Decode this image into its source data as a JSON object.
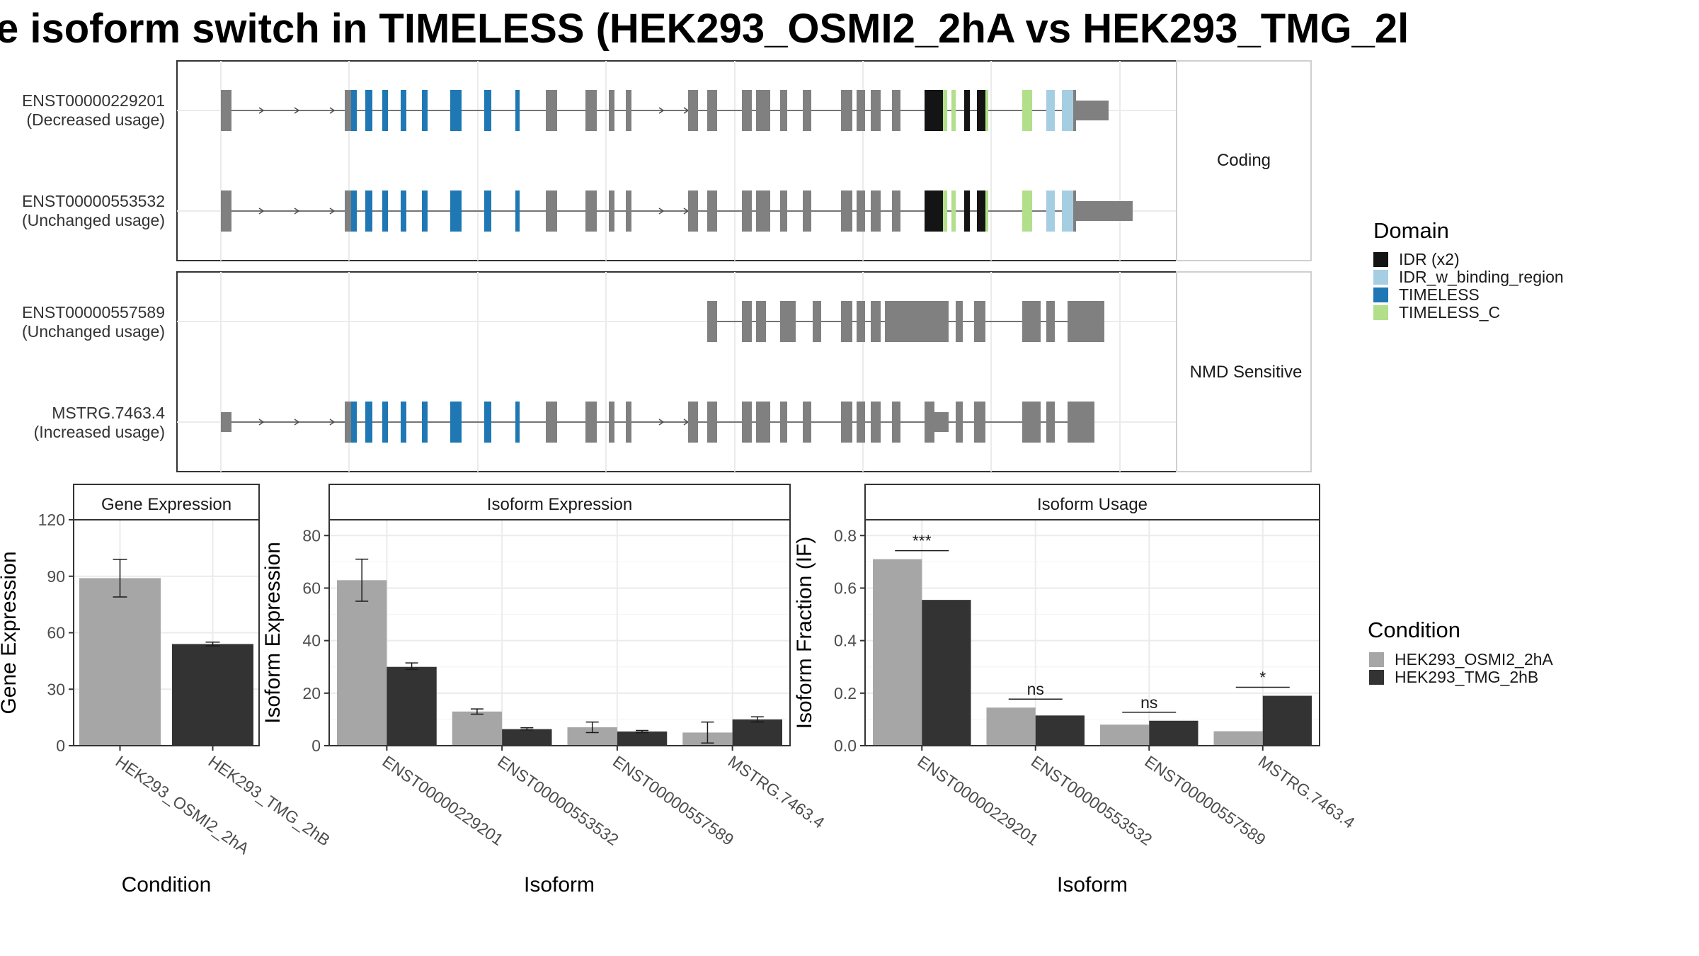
{
  "title": "e isoform switch in TIMELESS (HEK293_OSMI2_2hA vs HEK293_TMG_2l",
  "colors": {
    "IDR (x2)": "#141414",
    "IDR_w_binding_region": "#a6cee3",
    "TIMELESS": "#1f78b4",
    "TIMELESS_C": "#b2df8a",
    "exon": "#808080",
    "HEK293_OSMI2_2hA": "#a6a6a6",
    "HEK293_TMG_2hB": "#333333"
  },
  "transcript_panels": [
    {
      "label": "Coding",
      "isoforms": [
        {
          "id": "ENST00000229201",
          "usage": "(Decreased usage)"
        },
        {
          "id": "ENST00000553532",
          "usage": "(Unchanged usage)"
        }
      ]
    },
    {
      "label": "NMD Sensitive",
      "isoforms": [
        {
          "id": "ENST00000557589",
          "usage": "(Unchanged usage)"
        },
        {
          "id": "MSTRG.7463.4",
          "usage": "(Increased usage)"
        }
      ]
    }
  ],
  "legend_domain": {
    "title": "Domain",
    "items": [
      "IDR (x2)",
      "IDR_w_binding_region",
      "TIMELESS",
      "TIMELESS_C"
    ]
  },
  "legend_condition": {
    "title": "Condition",
    "items": [
      "HEK293_OSMI2_2hA",
      "HEK293_TMG_2hB"
    ]
  },
  "chart_data": [
    {
      "type": "bar",
      "title": "Gene Expression",
      "xlabel": "Condition",
      "ylabel": "Gene Expression",
      "ylim": [
        0,
        120
      ],
      "yticks": [
        0,
        30,
        60,
        90,
        120
      ],
      "categories": [
        "HEK293_OSMI2_2hA",
        "HEK293_TMG_2hB"
      ],
      "values": [
        89,
        54
      ],
      "error_bars": [
        [
          79,
          99
        ],
        [
          53,
          55
        ]
      ]
    },
    {
      "type": "bar",
      "title": "Isoform Expression",
      "xlabel": "Isoform",
      "ylabel": "Isoform Expression",
      "ylim": [
        0,
        86
      ],
      "yticks": [
        0,
        20,
        40,
        60,
        80
      ],
      "categories": [
        "ENST00000229201",
        "ENST00000553532",
        "ENST00000557589",
        "MSTRG.7463.4"
      ],
      "series": [
        {
          "name": "HEK293_OSMI2_2hA",
          "values": [
            63,
            13,
            7,
            5
          ],
          "error_bars": [
            [
              55,
              71
            ],
            [
              12,
              14
            ],
            [
              5,
              9
            ],
            [
              1,
              9
            ]
          ]
        },
        {
          "name": "HEK293_TMG_2hB",
          "values": [
            30,
            6.3,
            5.4,
            10
          ],
          "error_bars": [
            [
              29,
              31.5
            ],
            [
              6,
              6.8
            ],
            [
              5,
              5.8
            ],
            [
              9,
              11
            ]
          ]
        }
      ]
    },
    {
      "type": "bar",
      "title": "Isoform Usage",
      "xlabel": "Isoform",
      "ylabel": "Isoform Fraction (IF)",
      "ylim": [
        0,
        0.86
      ],
      "yticks": [
        "0.0",
        "0.2",
        "0.4",
        "0.6",
        "0.8"
      ],
      "categories": [
        "ENST00000229201",
        "ENST00000553532",
        "ENST00000557589",
        "MSTRG.7463.4"
      ],
      "series": [
        {
          "name": "HEK293_OSMI2_2hA",
          "values": [
            0.71,
            0.145,
            0.08,
            0.055
          ]
        },
        {
          "name": "HEK293_TMG_2hB",
          "values": [
            0.555,
            0.115,
            0.095,
            0.19
          ]
        }
      ],
      "annotations": [
        "***",
        "ns",
        "ns",
        "*"
      ]
    }
  ]
}
